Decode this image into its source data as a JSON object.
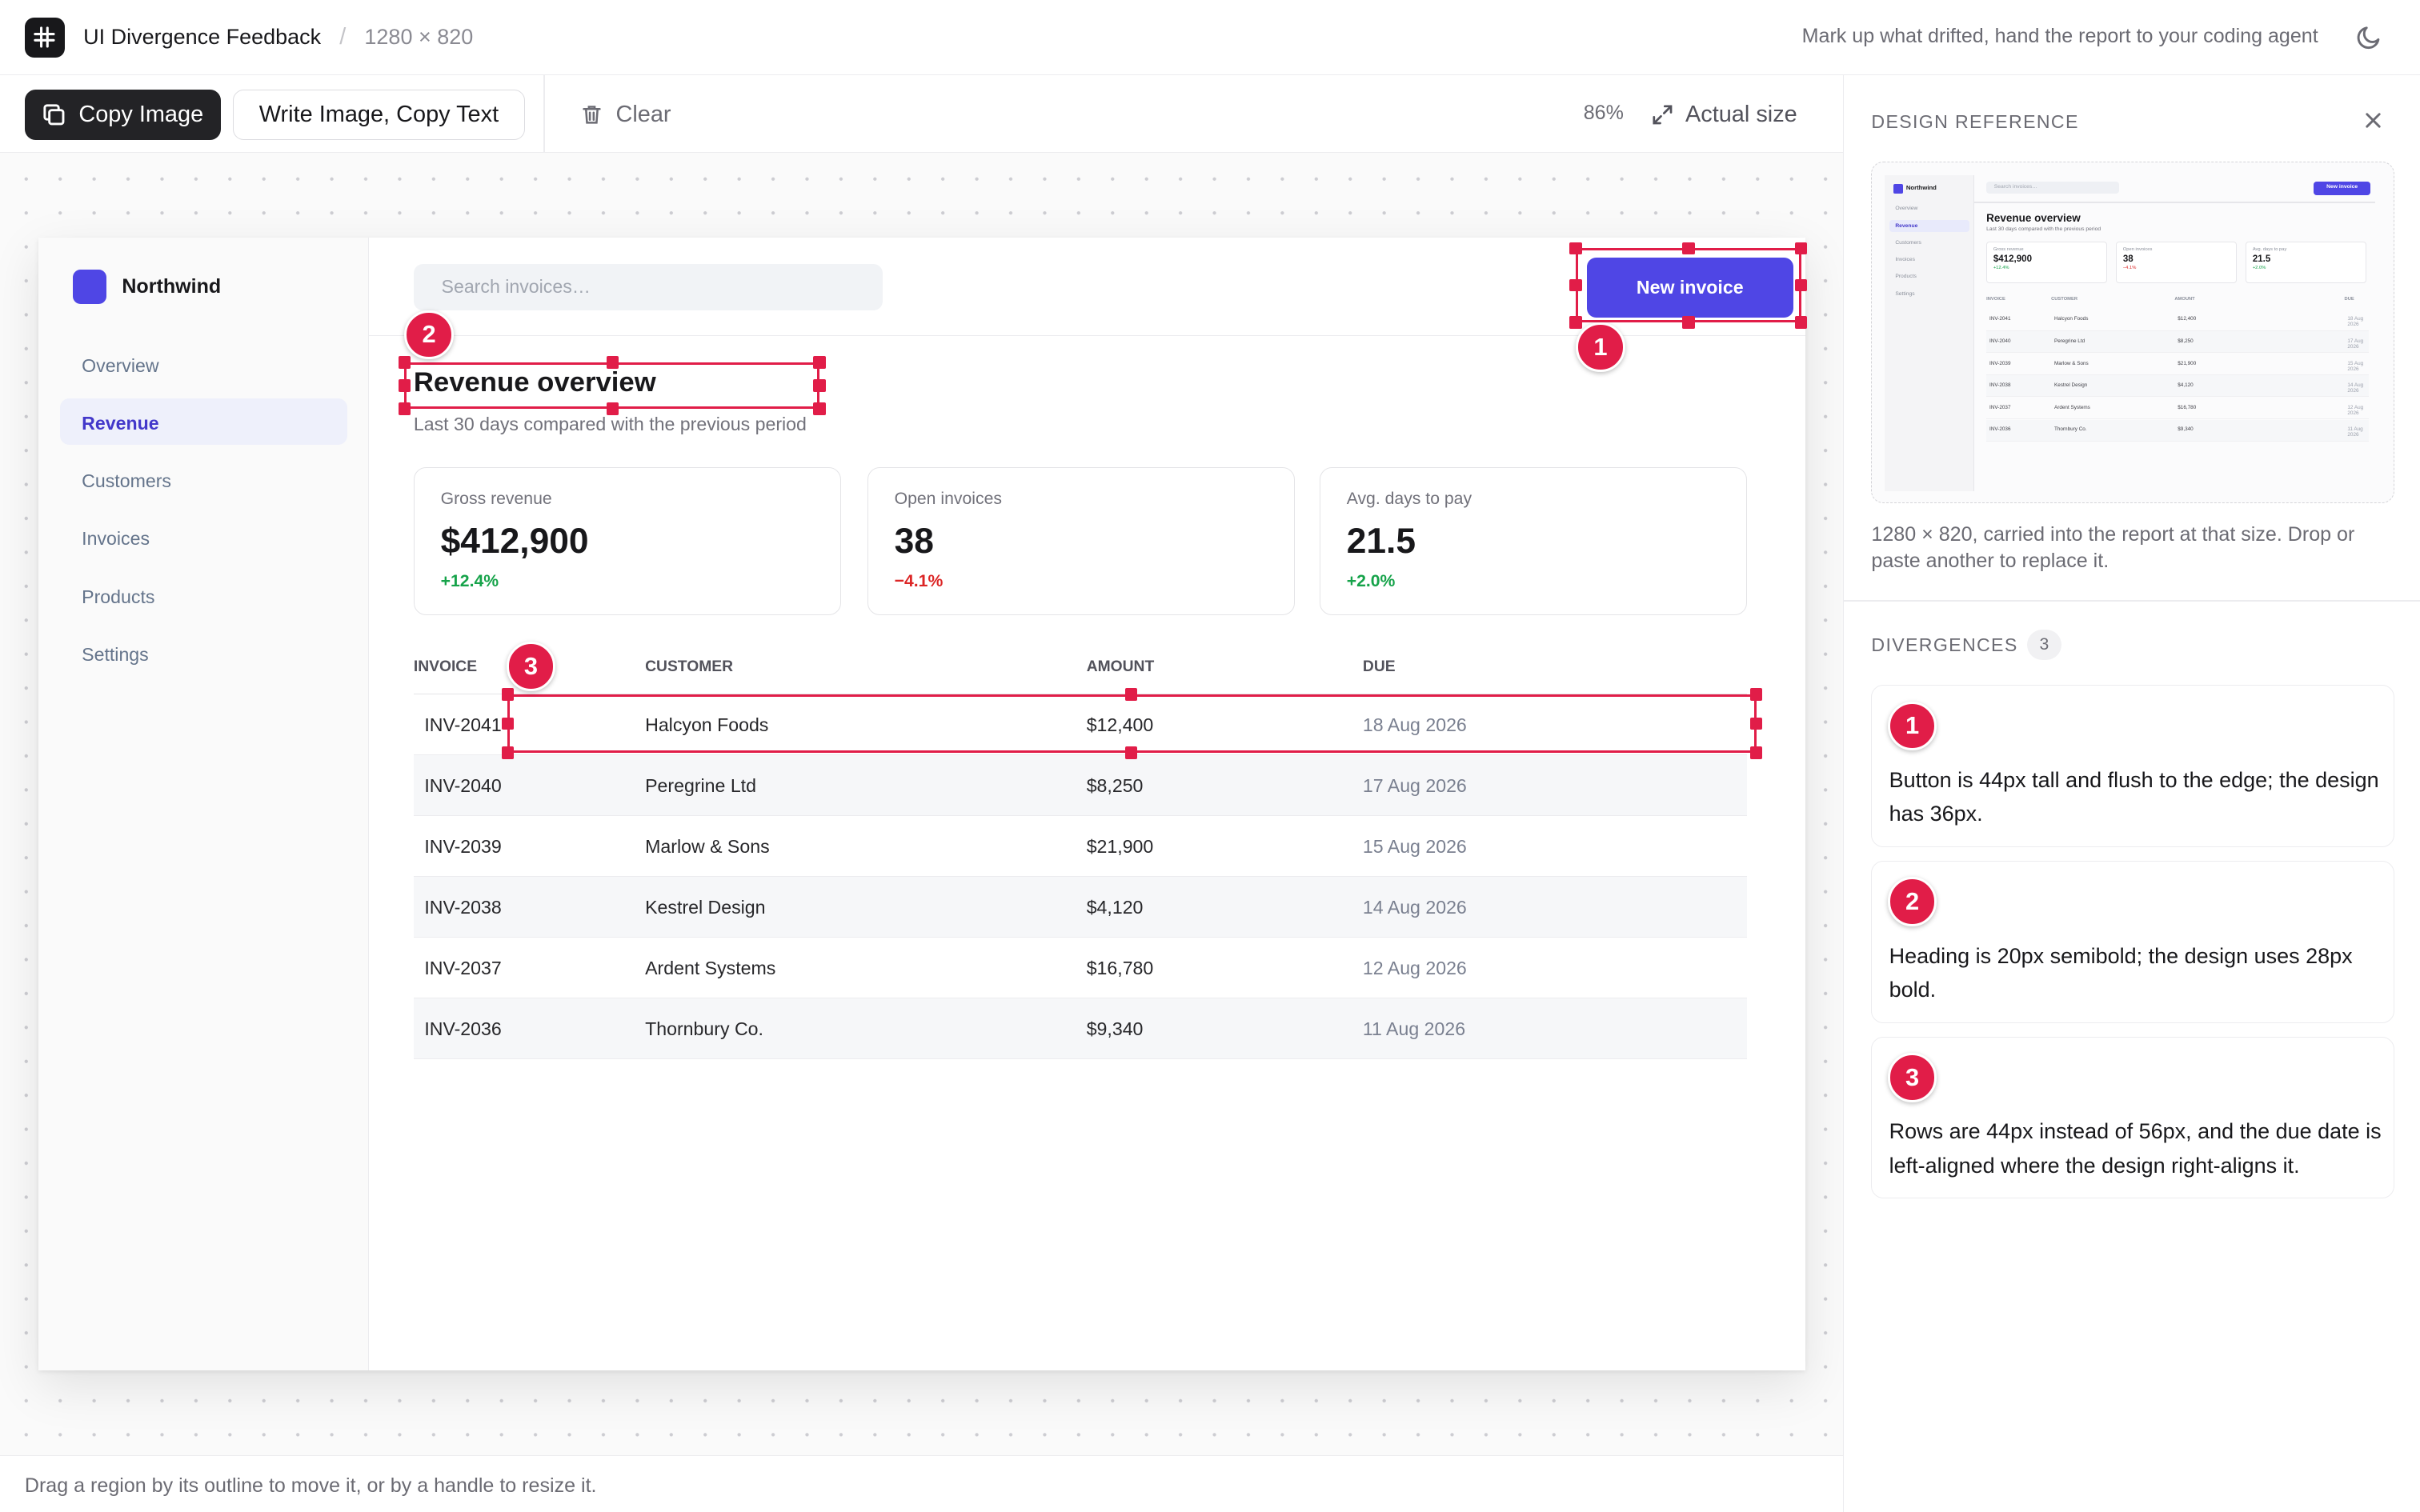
{
  "app": {
    "title": "UI Divergence Feedback",
    "separator": "/",
    "dimensions": "1280 × 820",
    "tagline": "Mark up what drifted, hand the report to your coding agent",
    "icons": {
      "logo": "hash-icon",
      "theme": "moon-icon"
    }
  },
  "toolbar": {
    "copy_image": "Copy Image",
    "write_image_copy_text": "Write Image, Copy Text",
    "clear": "Clear",
    "zoom": "86%",
    "actual_size": "Actual size"
  },
  "status_bar": "Drag a region by its outline to move it, or by a handle to resize it.",
  "mock": {
    "brand": "Northwind",
    "nav": [
      "Overview",
      "Revenue",
      "Customers",
      "Invoices",
      "Products",
      "Settings"
    ],
    "active_nav": "Revenue",
    "search_placeholder": "Search invoices…",
    "new_invoice": "New invoice",
    "heading": "Revenue overview",
    "subheading": "Last 30 days compared with the previous period",
    "cards": [
      {
        "label": "Gross revenue",
        "value": "$412,900",
        "delta": "+12.4%",
        "trend": "up"
      },
      {
        "label": "Open invoices",
        "value": "38",
        "delta": "−4.1%",
        "trend": "down"
      },
      {
        "label": "Avg. days to pay",
        "value": "21.5",
        "delta": "+2.0%",
        "trend": "up"
      }
    ],
    "table": {
      "columns": [
        "INVOICE",
        "CUSTOMER",
        "AMOUNT",
        "DUE"
      ],
      "rows": [
        [
          "INV-2041",
          "Halcyon Foods",
          "$12,400",
          "18 Aug 2026"
        ],
        [
          "INV-2040",
          "Peregrine Ltd",
          "$8,250",
          "17 Aug 2026"
        ],
        [
          "INV-2039",
          "Marlow & Sons",
          "$21,900",
          "15 Aug 2026"
        ],
        [
          "INV-2038",
          "Kestrel Design",
          "$4,120",
          "14 Aug 2026"
        ],
        [
          "INV-2037",
          "Ardent Systems",
          "$16,780",
          "12 Aug 2026"
        ],
        [
          "INV-2036",
          "Thornbury Co.",
          "$9,340",
          "11 Aug 2026"
        ]
      ]
    }
  },
  "panel": {
    "reference_label": "DESIGN REFERENCE",
    "reference_caption": "1280 × 820, carried into the report at that size. Drop or paste another to replace it.",
    "divergences_label": "DIVERGENCES",
    "divergences_count": "3",
    "divergences": [
      {
        "number": "1",
        "text": "Button is 44px tall and flush to the edge; the design has 36px."
      },
      {
        "number": "2",
        "text": "Heading is 20px semibold; the design uses 28px bold."
      },
      {
        "number": "3",
        "text": "Rows are 44px instead of 56px, and the due date is left-aligned where the design right-aligns it."
      }
    ]
  },
  "colors": {
    "accent": "#4f46e5",
    "annotation": "#e11d48",
    "positive": "#16a34a",
    "negative": "#dc2626"
  }
}
